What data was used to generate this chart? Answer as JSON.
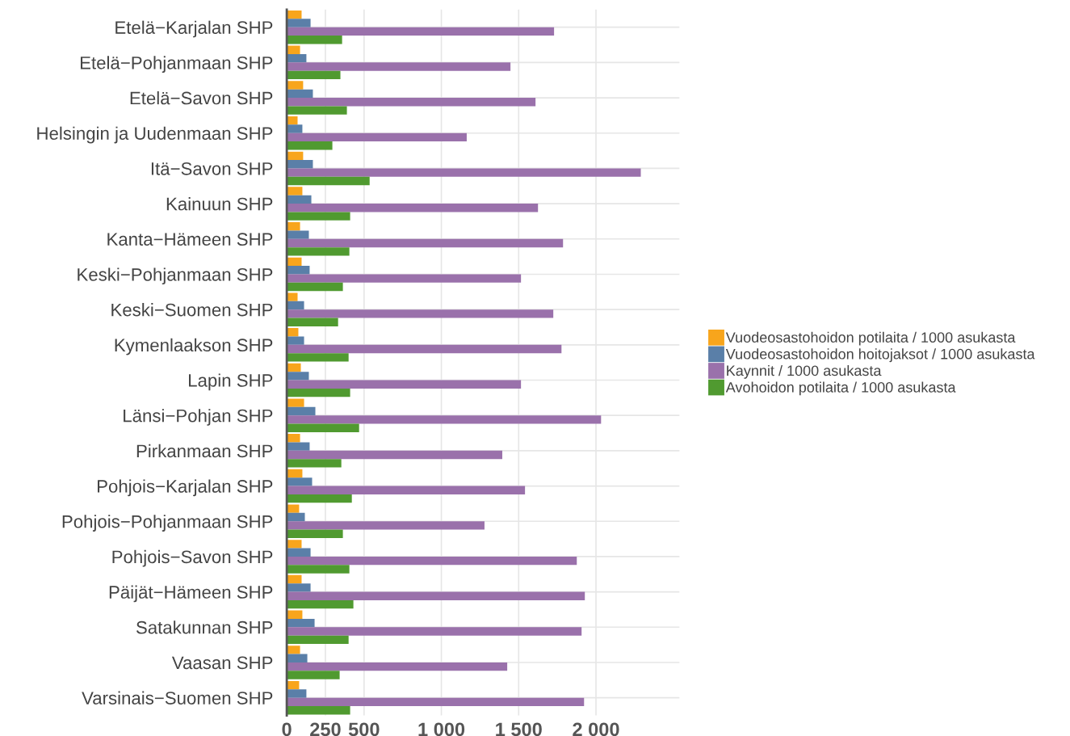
{
  "chart_data": {
    "type": "bar",
    "orientation": "horizontal",
    "categories": [
      "Etelä−Karjalan SHP",
      "Etelä−Pohjanmaan SHP",
      "Etelä−Savon SHP",
      "Helsingin ja Uudenmaan SHP",
      "Itä−Savon SHP",
      "Kainuun SHP",
      "Kanta−Hämeen SHP",
      "Keski−Pohjanmaan SHP",
      "Keski−Suomen SHP",
      "Kymenlaakson SHP",
      "Lapin SHP",
      "Länsi−Pohjan SHP",
      "Pirkanmaan SHP",
      "Pohjois−Karjalan SHP",
      "Pohjois−Pohjanmaan SHP",
      "Pohjois−Savon SHP",
      "Päijät−Hämeen SHP",
      "Satakunnan SHP",
      "Vaasan SHP",
      "Varsinais−Suomen SHP"
    ],
    "series": [
      {
        "name": "Vuodeosastohoidon potilaita / 1000 asukasta",
        "color": "#f8a51c",
        "values": [
          96,
          86,
          106,
          70,
          106,
          101,
          86,
          96,
          70,
          75,
          91,
          112,
          86,
          101,
          80,
          96,
          96,
          101,
          86,
          80
        ]
      },
      {
        "name": "Vuodeosastohoidon hoitojaksot / 1000 asukasta",
        "color": "#5a7fa8",
        "values": [
          154,
          127,
          169,
          101,
          169,
          159,
          143,
          148,
          112,
          112,
          143,
          185,
          148,
          164,
          117,
          154,
          154,
          180,
          133,
          127
        ]
      },
      {
        "name": "Kaynnit / 1000 asukasta",
        "color": "#9a71ab",
        "values": [
          1729,
          1447,
          1609,
          1164,
          2290,
          1625,
          1787,
          1515,
          1724,
          1777,
          1515,
          2033,
          1394,
          1541,
          1279,
          1876,
          1928,
          1907,
          1426,
          1923
        ]
      },
      {
        "name": "Avohoidon potilaita / 1000 asukasta",
        "color": "#509a30",
        "values": [
          358,
          347,
          389,
          295,
          536,
          410,
          405,
          363,
          332,
          400,
          410,
          468,
          353,
          421,
          363,
          405,
          431,
          400,
          342,
          410
        ]
      }
    ],
    "xlim": [
      0,
      2540
    ],
    "xticks": [
      0,
      250,
      500,
      1000,
      1500,
      2000
    ],
    "grid": true,
    "legend": "right"
  }
}
